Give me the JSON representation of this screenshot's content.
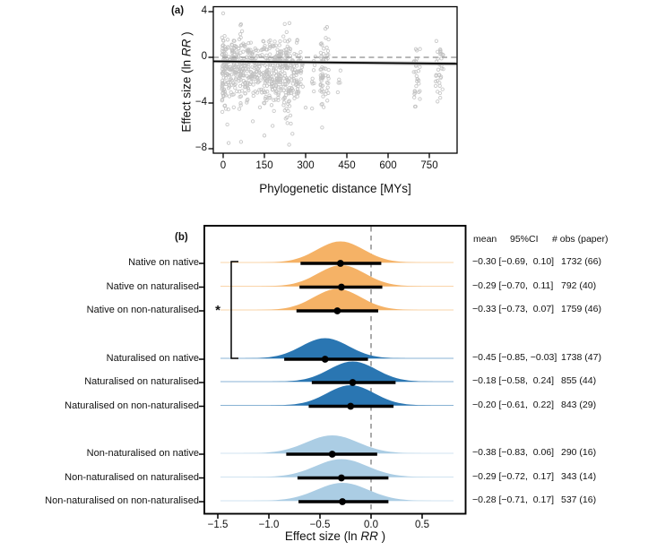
{
  "figure": {
    "background": "#ffffff"
  },
  "chart_data": [
    {
      "type": "scatter",
      "panel_tag": "(a)",
      "xlabel": "Phylogenetic distance [MYs]",
      "ylabel_prefix": "Effect size (ln ",
      "ylabel_italic": "RR",
      "ylabel_suffix": " )",
      "x_tick_labels": [
        "0",
        "150",
        "300",
        "450",
        "600",
        "750"
      ],
      "x_tick_values": [
        0,
        150,
        300,
        450,
        600,
        750
      ],
      "y_tick_labels": [
        "4",
        "0",
        "−4",
        "−8"
      ],
      "y_tick_values": [
        4,
        0,
        -4,
        -8
      ],
      "xlim": [
        -35,
        855
      ],
      "ylim": [
        -8.45,
        4.45
      ],
      "zero_line_y": 0,
      "point_color": "#c0c0c0",
      "trend_line": {
        "x_start": -35,
        "x_end": 855,
        "y_start": -0.35,
        "y_end": -0.56
      },
      "trend_band": {
        "top_start": -0.22,
        "bot_start": -0.48,
        "top_end": -0.4,
        "bot_end": -0.74,
        "color": "#b9b9b9"
      },
      "scatter_clusters": [
        {
          "x": 2,
          "n": 60,
          "c": -1.1,
          "s": 1.7,
          "lo": -5.8,
          "hi": 2.1
        },
        {
          "x": 16,
          "n": 34,
          "c": -1.3,
          "s": 1.6,
          "lo": -7.5,
          "hi": 1.7
        },
        {
          "x": 30,
          "n": 30,
          "c": -1.0,
          "s": 1.4,
          "lo": -6.6,
          "hi": 1.6
        },
        {
          "x": 45,
          "n": 38,
          "c": -0.9,
          "s": 1.5,
          "lo": -4.6,
          "hi": 2.2
        },
        {
          "x": 62,
          "n": 42,
          "c": -1.2,
          "s": 1.7,
          "lo": -7.4,
          "hi": 2.9
        },
        {
          "x": 76,
          "n": 28,
          "c": -1.0,
          "s": 1.4,
          "lo": -3.9,
          "hi": 1.4
        },
        {
          "x": 92,
          "n": 34,
          "c": -1.1,
          "s": 1.5,
          "lo": -4.2,
          "hi": 1.6
        },
        {
          "x": 106,
          "n": 30,
          "c": -0.9,
          "s": 1.3,
          "lo": -3.4,
          "hi": 1.5
        },
        {
          "x": 120,
          "n": 26,
          "c": -0.8,
          "s": 1.2,
          "lo": -3.2,
          "hi": 1.1
        },
        {
          "x": 136,
          "n": 20,
          "c": -1.4,
          "s": 1.4,
          "lo": -4.6,
          "hi": 0.9
        },
        {
          "x": 152,
          "n": 30,
          "c": -1.0,
          "s": 1.5,
          "lo": -6.9,
          "hi": 1.6
        },
        {
          "x": 166,
          "n": 34,
          "c": -1.2,
          "s": 1.5,
          "lo": -4.8,
          "hi": 1.6
        },
        {
          "x": 182,
          "n": 30,
          "c": -1.5,
          "s": 1.6,
          "lo": -5.6,
          "hi": 1.5
        },
        {
          "x": 196,
          "n": 38,
          "c": -1.2,
          "s": 1.5,
          "lo": -4.6,
          "hi": 1.7
        },
        {
          "x": 210,
          "n": 34,
          "c": -1.1,
          "s": 1.4,
          "lo": -4.2,
          "hi": 1.6
        },
        {
          "x": 226,
          "n": 48,
          "c": -1.5,
          "s": 1.9,
          "lo": -7.0,
          "hi": 3.1
        },
        {
          "x": 240,
          "n": 34,
          "c": -1.8,
          "s": 1.9,
          "lo": -7.7,
          "hi": 1.6
        },
        {
          "x": 255,
          "n": 24,
          "c": -1.2,
          "s": 1.4,
          "lo": -4.2,
          "hi": 1.2
        },
        {
          "x": 270,
          "n": 30,
          "c": -1.4,
          "s": 1.6,
          "lo": -5.2,
          "hi": 1.6
        },
        {
          "x": 286,
          "n": 14,
          "c": -1.0,
          "s": 1.1,
          "lo": -3.1,
          "hi": 0.6
        },
        {
          "x": 330,
          "n": 10,
          "c": -1.8,
          "s": 1.4,
          "lo": -4.6,
          "hi": 0.4
        },
        {
          "x": 360,
          "n": 38,
          "c": -1.6,
          "s": 1.8,
          "lo": -6.2,
          "hi": 1.8
        },
        {
          "x": 377,
          "n": 20,
          "c": -1.2,
          "s": 1.6,
          "lo": -5.6,
          "hi": 2.7
        },
        {
          "x": 420,
          "n": 5,
          "c": -2.0,
          "s": 0.9,
          "lo": -3.2,
          "hi": -0.8
        },
        {
          "x": 700,
          "n": 20,
          "c": -1.3,
          "s": 1.6,
          "lo": -4.7,
          "hi": 1.4
        },
        {
          "x": 713,
          "n": 10,
          "c": -1.6,
          "s": 1.5,
          "lo": -4.4,
          "hi": 1.0
        },
        {
          "x": 780,
          "n": 16,
          "c": -1.2,
          "s": 1.6,
          "lo": -5.1,
          "hi": 1.7
        },
        {
          "x": 794,
          "n": 18,
          "c": -1.5,
          "s": 1.7,
          "lo": -5.0,
          "hi": 1.6
        }
      ],
      "scatter_outliers": [
        [
          0,
          3.85
        ],
        [
          241,
          3.0
        ],
        [
          65,
          2.9
        ],
        [
          378,
          2.65
        ],
        [
          372,
          2.5
        ],
        [
          20,
          -7.5
        ],
        [
          65,
          -7.4
        ],
        [
          240,
          -7.65
        ],
        [
          252,
          -6.7
        ],
        [
          150,
          -6.85
        ],
        [
          360,
          -6.15
        ],
        [
          300,
          -4.4
        ],
        [
          108,
          -5.6
        ],
        [
          180,
          -6.0
        ]
      ]
    },
    {
      "type": "area",
      "subtype": "ridgeline-forest",
      "panel_tag": "(b)",
      "xlabel_prefix": "Effect size (ln ",
      "xlabel_italic": "RR",
      "xlabel_suffix": " )",
      "x_tick_labels": [
        "−1.5",
        "−1.0",
        "−0.5",
        "0.0",
        "0.5"
      ],
      "x_tick_values": [
        -1.5,
        -1.0,
        -0.5,
        0.0,
        0.5
      ],
      "xlim": [
        -1.63,
        0.93
      ],
      "zero_line_x": 0.0,
      "significance_star": "*",
      "header": {
        "mean": "mean",
        "ci": "95%CI",
        "obs": "# obs (paper)"
      },
      "groups": {
        "native": "#F5B266",
        "naturalised": "#2A76B2",
        "non_naturalised": "#ABCDE4"
      },
      "rows": [
        {
          "label": "Native on native",
          "group": "native",
          "mean": -0.3,
          "ci_low": -0.69,
          "ci_high": 0.1,
          "stats": "−0.30 [−0.69,  0.10]",
          "obs": "1732 (66)"
        },
        {
          "label": "Native on naturalised",
          "group": "native",
          "mean": -0.29,
          "ci_low": -0.7,
          "ci_high": 0.11,
          "stats": "−0.29 [−0.70,  0.11]",
          "obs": "792 (40)"
        },
        {
          "label": "Native on non-naturalised",
          "group": "native",
          "mean": -0.33,
          "ci_low": -0.73,
          "ci_high": 0.07,
          "stats": "−0.33 [−0.73,  0.07]",
          "obs": "1759 (46)"
        },
        {
          "label": "Naturalised on native",
          "group": "naturalised",
          "mean": -0.45,
          "ci_low": -0.85,
          "ci_high": -0.03,
          "stats": "−0.45 [−0.85, −0.03]",
          "obs": "1738 (47)"
        },
        {
          "label": "Naturalised on naturalised",
          "group": "naturalised",
          "mean": -0.18,
          "ci_low": -0.58,
          "ci_high": 0.24,
          "stats": "−0.18 [−0.58,  0.24]",
          "obs": "855 (44)"
        },
        {
          "label": "Naturalised on non-naturalised",
          "group": "naturalised",
          "mean": -0.2,
          "ci_low": -0.61,
          "ci_high": 0.22,
          "stats": "−0.20 [−0.61,  0.22]",
          "obs": "843 (29)"
        },
        {
          "label": "Non-naturalised on native",
          "group": "non_naturalised",
          "mean": -0.38,
          "ci_low": -0.83,
          "ci_high": 0.06,
          "stats": "−0.38 [−0.83,  0.06]",
          "obs": "290 (16)"
        },
        {
          "label": "Non-naturalised on naturalised",
          "group": "non_naturalised",
          "mean": -0.29,
          "ci_low": -0.72,
          "ci_high": 0.17,
          "stats": "−0.29 [−0.72,  0.17]",
          "obs": "343 (14)"
        },
        {
          "label": "Non-naturalised on non-naturalised",
          "group": "non_naturalised",
          "mean": -0.28,
          "ci_low": -0.71,
          "ci_high": 0.17,
          "stats": "−0.28 [−0.71,  0.17]",
          "obs": "537 (16)"
        }
      ]
    }
  ]
}
